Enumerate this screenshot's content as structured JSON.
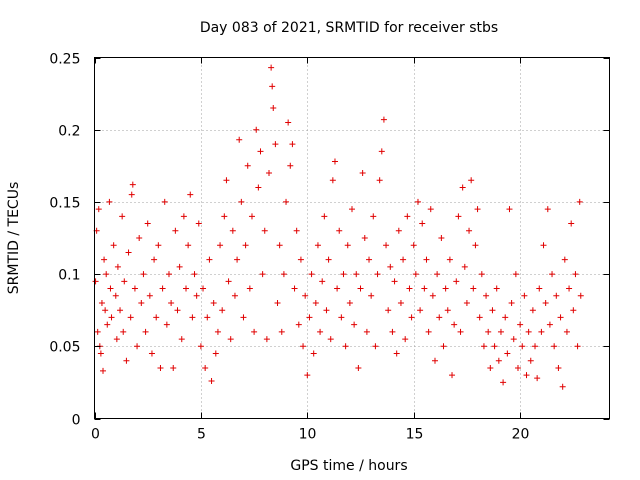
{
  "chart_data": {
    "type": "scatter",
    "title": "Day 083 of 2021, SRMTID for receiver stbs",
    "xlabel": "GPS time / hours",
    "ylabel": "SRMTID / TECUs",
    "xlim": [
      0,
      24.2
    ],
    "ylim": [
      0,
      0.25
    ],
    "x_ticks": [
      0,
      5,
      10,
      15,
      20
    ],
    "x_tick_labels": [
      "0",
      "5",
      "10",
      "15",
      "20"
    ],
    "y_ticks": [
      0,
      0.05,
      0.1,
      0.15,
      0.2,
      0.25
    ],
    "y_tick_labels": [
      "0",
      "0.05",
      "0.1",
      "0.15",
      "0.2",
      "0.25"
    ],
    "grid": true,
    "marker": "+",
    "color": "#e00000",
    "series": [
      {
        "name": "SRMTID",
        "points": [
          [
            0.05,
            0.095
          ],
          [
            0.1,
            0.13
          ],
          [
            0.15,
            0.06
          ],
          [
            0.2,
            0.145
          ],
          [
            0.25,
            0.05
          ],
          [
            0.3,
            0.045
          ],
          [
            0.35,
            0.08
          ],
          [
            0.4,
            0.033
          ],
          [
            0.45,
            0.11
          ],
          [
            0.5,
            0.075
          ],
          [
            0.55,
            0.1
          ],
          [
            0.6,
            0.065
          ],
          [
            0.7,
            0.15
          ],
          [
            0.75,
            0.09
          ],
          [
            0.8,
            0.07
          ],
          [
            0.9,
            0.12
          ],
          [
            1.0,
            0.085
          ],
          [
            1.05,
            0.055
          ],
          [
            1.1,
            0.105
          ],
          [
            1.2,
            0.075
          ],
          [
            1.3,
            0.14
          ],
          [
            1.35,
            0.06
          ],
          [
            1.4,
            0.095
          ],
          [
            1.5,
            0.04
          ],
          [
            1.6,
            0.115
          ],
          [
            1.7,
            0.07
          ],
          [
            1.75,
            0.155
          ],
          [
            1.8,
            0.162
          ],
          [
            1.9,
            0.09
          ],
          [
            2.0,
            0.05
          ],
          [
            2.1,
            0.125
          ],
          [
            2.2,
            0.08
          ],
          [
            2.3,
            0.1
          ],
          [
            2.4,
            0.06
          ],
          [
            2.5,
            0.135
          ],
          [
            2.6,
            0.085
          ],
          [
            2.7,
            0.045
          ],
          [
            2.8,
            0.11
          ],
          [
            2.9,
            0.07
          ],
          [
            3.0,
            0.12
          ],
          [
            3.1,
            0.035
          ],
          [
            3.2,
            0.09
          ],
          [
            3.3,
            0.15
          ],
          [
            3.4,
            0.065
          ],
          [
            3.5,
            0.1
          ],
          [
            3.6,
            0.08
          ],
          [
            3.7,
            0.035
          ],
          [
            3.8,
            0.13
          ],
          [
            3.9,
            0.075
          ],
          [
            4.0,
            0.105
          ],
          [
            4.1,
            0.055
          ],
          [
            4.2,
            0.14
          ],
          [
            4.3,
            0.09
          ],
          [
            4.4,
            0.12
          ],
          [
            4.5,
            0.155
          ],
          [
            4.6,
            0.07
          ],
          [
            4.7,
            0.1
          ],
          [
            4.8,
            0.085
          ],
          [
            4.9,
            0.135
          ],
          [
            5.0,
            0.05
          ],
          [
            5.1,
            0.09
          ],
          [
            5.2,
            0.035
          ],
          [
            5.3,
            0.07
          ],
          [
            5.4,
            0.11
          ],
          [
            5.5,
            0.026
          ],
          [
            5.6,
            0.08
          ],
          [
            5.7,
            0.045
          ],
          [
            5.8,
            0.06
          ],
          [
            5.9,
            0.12
          ],
          [
            6.0,
            0.075
          ],
          [
            6.1,
            0.14
          ],
          [
            6.2,
            0.165
          ],
          [
            6.3,
            0.095
          ],
          [
            6.4,
            0.055
          ],
          [
            6.5,
            0.13
          ],
          [
            6.6,
            0.085
          ],
          [
            6.7,
            0.11
          ],
          [
            6.8,
            0.193
          ],
          [
            6.9,
            0.15
          ],
          [
            7.0,
            0.07
          ],
          [
            7.1,
            0.12
          ],
          [
            7.2,
            0.175
          ],
          [
            7.3,
            0.09
          ],
          [
            7.4,
            0.14
          ],
          [
            7.5,
            0.06
          ],
          [
            7.6,
            0.2
          ],
          [
            7.7,
            0.16
          ],
          [
            7.8,
            0.185
          ],
          [
            7.9,
            0.1
          ],
          [
            8.0,
            0.13
          ],
          [
            8.1,
            0.055
          ],
          [
            8.2,
            0.17
          ],
          [
            8.3,
            0.243
          ],
          [
            8.35,
            0.23
          ],
          [
            8.4,
            0.215
          ],
          [
            8.5,
            0.19
          ],
          [
            8.6,
            0.08
          ],
          [
            8.7,
            0.12
          ],
          [
            8.8,
            0.06
          ],
          [
            8.9,
            0.1
          ],
          [
            9.0,
            0.15
          ],
          [
            9.1,
            0.205
          ],
          [
            9.2,
            0.175
          ],
          [
            9.3,
            0.19
          ],
          [
            9.4,
            0.09
          ],
          [
            9.5,
            0.13
          ],
          [
            9.6,
            0.065
          ],
          [
            9.7,
            0.11
          ],
          [
            9.8,
            0.05
          ],
          [
            9.9,
            0.085
          ],
          [
            10.0,
            0.03
          ],
          [
            10.1,
            0.07
          ],
          [
            10.2,
            0.1
          ],
          [
            10.3,
            0.045
          ],
          [
            10.4,
            0.08
          ],
          [
            10.5,
            0.12
          ],
          [
            10.6,
            0.06
          ],
          [
            10.7,
            0.095
          ],
          [
            10.8,
            0.14
          ],
          [
            10.9,
            0.075
          ],
          [
            11.0,
            0.11
          ],
          [
            11.1,
            0.055
          ],
          [
            11.2,
            0.165
          ],
          [
            11.3,
            0.178
          ],
          [
            11.4,
            0.09
          ],
          [
            11.5,
            0.13
          ],
          [
            11.6,
            0.07
          ],
          [
            11.7,
            0.1
          ],
          [
            11.8,
            0.05
          ],
          [
            11.9,
            0.12
          ],
          [
            12.0,
            0.08
          ],
          [
            12.1,
            0.145
          ],
          [
            12.2,
            0.065
          ],
          [
            12.3,
            0.1
          ],
          [
            12.4,
            0.035
          ],
          [
            12.5,
            0.09
          ],
          [
            12.6,
            0.17
          ],
          [
            12.7,
            0.125
          ],
          [
            12.8,
            0.06
          ],
          [
            12.9,
            0.11
          ],
          [
            13.0,
            0.085
          ],
          [
            13.1,
            0.14
          ],
          [
            13.2,
            0.05
          ],
          [
            13.3,
            0.1
          ],
          [
            13.4,
            0.165
          ],
          [
            13.5,
            0.185
          ],
          [
            13.6,
            0.207
          ],
          [
            13.7,
            0.12
          ],
          [
            13.8,
            0.075
          ],
          [
            13.9,
            0.105
          ],
          [
            14.0,
            0.06
          ],
          [
            14.1,
            0.095
          ],
          [
            14.2,
            0.045
          ],
          [
            14.3,
            0.13
          ],
          [
            14.4,
            0.08
          ],
          [
            14.5,
            0.11
          ],
          [
            14.6,
            0.055
          ],
          [
            14.7,
            0.14
          ],
          [
            14.8,
            0.09
          ],
          [
            14.9,
            0.07
          ],
          [
            15.0,
            0.12
          ],
          [
            15.1,
            0.1
          ],
          [
            15.2,
            0.15
          ],
          [
            15.3,
            0.075
          ],
          [
            15.4,
            0.135
          ],
          [
            15.5,
            0.09
          ],
          [
            15.6,
            0.11
          ],
          [
            15.7,
            0.06
          ],
          [
            15.8,
            0.145
          ],
          [
            15.9,
            0.085
          ],
          [
            16.0,
            0.04
          ],
          [
            16.1,
            0.1
          ],
          [
            16.2,
            0.07
          ],
          [
            16.3,
            0.125
          ],
          [
            16.4,
            0.05
          ],
          [
            16.5,
            0.09
          ],
          [
            16.6,
            0.075
          ],
          [
            16.7,
            0.11
          ],
          [
            16.8,
            0.03
          ],
          [
            16.9,
            0.065
          ],
          [
            17.0,
            0.095
          ],
          [
            17.1,
            0.14
          ],
          [
            17.2,
            0.06
          ],
          [
            17.3,
            0.16
          ],
          [
            17.4,
            0.105
          ],
          [
            17.5,
            0.08
          ],
          [
            17.6,
            0.13
          ],
          [
            17.7,
            0.165
          ],
          [
            17.8,
            0.09
          ],
          [
            17.9,
            0.12
          ],
          [
            18.0,
            0.145
          ],
          [
            18.1,
            0.07
          ],
          [
            18.2,
            0.1
          ],
          [
            18.3,
            0.05
          ],
          [
            18.4,
            0.085
          ],
          [
            18.5,
            0.06
          ],
          [
            18.6,
            0.035
          ],
          [
            18.7,
            0.075
          ],
          [
            18.8,
            0.05
          ],
          [
            18.9,
            0.09
          ],
          [
            19.0,
            0.04
          ],
          [
            19.1,
            0.06
          ],
          [
            19.2,
            0.025
          ],
          [
            19.3,
            0.07
          ],
          [
            19.4,
            0.045
          ],
          [
            19.5,
            0.145
          ],
          [
            19.6,
            0.08
          ],
          [
            19.7,
            0.055
          ],
          [
            19.8,
            0.1
          ],
          [
            19.9,
            0.035
          ],
          [
            20.0,
            0.065
          ],
          [
            20.1,
            0.05
          ],
          [
            20.2,
            0.085
          ],
          [
            20.3,
            0.03
          ],
          [
            20.4,
            0.06
          ],
          [
            20.5,
            0.04
          ],
          [
            20.6,
            0.075
          ],
          [
            20.7,
            0.05
          ],
          [
            20.8,
            0.028
          ],
          [
            20.9,
            0.09
          ],
          [
            21.0,
            0.06
          ],
          [
            21.1,
            0.12
          ],
          [
            21.2,
            0.08
          ],
          [
            21.3,
            0.145
          ],
          [
            21.4,
            0.065
          ],
          [
            21.5,
            0.1
          ],
          [
            21.6,
            0.05
          ],
          [
            21.7,
            0.085
          ],
          [
            21.8,
            0.035
          ],
          [
            21.9,
            0.07
          ],
          [
            22.0,
            0.022
          ],
          [
            22.1,
            0.11
          ],
          [
            22.2,
            0.06
          ],
          [
            22.3,
            0.09
          ],
          [
            22.4,
            0.135
          ],
          [
            22.5,
            0.075
          ],
          [
            22.6,
            0.1
          ],
          [
            22.7,
            0.05
          ],
          [
            22.8,
            0.15
          ],
          [
            22.85,
            0.085
          ]
        ]
      }
    ]
  }
}
